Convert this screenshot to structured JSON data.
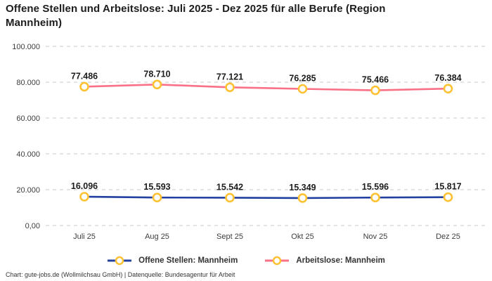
{
  "header": {
    "title": "Offene Stellen und Arbeitslose: Juli 2025 - Dez 2025 für alle Berufe (Region Mannheim)"
  },
  "footer": {
    "text": "Chart: gute-jobs.de (Wollmilchsau GmbH) | Datenquelle: Bundesagentur für Arbeit"
  },
  "colors": {
    "open_positions_line": "#22409f",
    "unemployed_line": "#f87187",
    "marker_stroke": "#fdc233",
    "marker_fill": "#ffffff",
    "gridline": "#c9c9c9",
    "tick_label": "#3d3d3d",
    "data_label": "#1c1c1c"
  },
  "chart_data": {
    "type": "line",
    "title": "Offene Stellen und Arbeitslose: Juli 2025 - Dez 2025 für alle Berufe (Region Mannheim)",
    "categories": [
      "Juli 25",
      "Aug 25",
      "Sept 25",
      "Okt 25",
      "Nov 25",
      "Dez 25"
    ],
    "series": [
      {
        "name": "Offene Stellen: Mannheim",
        "color": "#22409f",
        "values": [
          16096,
          15593,
          15542,
          15349,
          15596,
          15817
        ],
        "labels": [
          "16.096",
          "15.593",
          "15.542",
          "15.349",
          "15.596",
          "15.817"
        ]
      },
      {
        "name": "Arbeitslose: Mannheim",
        "color": "#f87187",
        "values": [
          77486,
          78710,
          77121,
          76285,
          75466,
          76384
        ],
        "labels": [
          "77.486",
          "78.710",
          "77.121",
          "76.285",
          "75.466",
          "76.384"
        ]
      }
    ],
    "xlabel": "",
    "ylabel": "",
    "ylim": [
      0,
      100000
    ],
    "y_ticks": [
      {
        "value": 0,
        "label": "0,00"
      },
      {
        "value": 20000,
        "label": "20.000"
      },
      {
        "value": 40000,
        "label": "40.000"
      },
      {
        "value": 60000,
        "label": "60.000"
      },
      {
        "value": 80000,
        "label": "80.000"
      },
      {
        "value": 100000,
        "label": "100.000"
      }
    ],
    "grid": "dashed-horizontal",
    "legend_position": "bottom"
  }
}
